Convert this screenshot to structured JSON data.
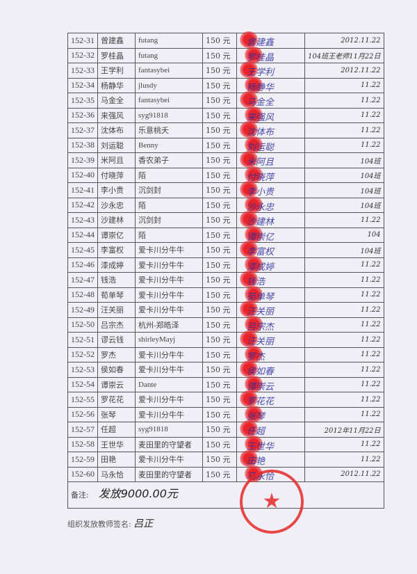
{
  "rows": [
    {
      "id": "152-31",
      "name": "曾建鑫",
      "nickname": "futang",
      "amount": "150 元",
      "signature": "曾建鑫",
      "date": "2012.11.22"
    },
    {
      "id": "152-32",
      "name": "罗桂晶",
      "nickname": "futang",
      "amount": "150 元",
      "signature": "罗桂晶",
      "date": "104班王老师11月22日"
    },
    {
      "id": "152-33",
      "name": "王学利",
      "nickname": "fantasybei",
      "amount": "150 元",
      "signature": "王学利",
      "date": "2012.11.22"
    },
    {
      "id": "152-34",
      "name": "杨静华",
      "nickname": "jlusdy",
      "amount": "150 元",
      "signature": "杨静华",
      "date": "11.22"
    },
    {
      "id": "152-35",
      "name": "马金全",
      "nickname": "fantasybei",
      "amount": "150 元",
      "signature": "马金全",
      "date": "11.22"
    },
    {
      "id": "152-36",
      "name": "来强风",
      "nickname": "syg91818",
      "amount": "150 元",
      "signature": "来强风",
      "date": "11.22"
    },
    {
      "id": "152-37",
      "name": "沈体布",
      "nickname": "乐意桃夭",
      "amount": "150 元",
      "signature": "沈体布",
      "date": "11.22"
    },
    {
      "id": "152-38",
      "name": "刘运聪",
      "nickname": "Benny",
      "amount": "150 元",
      "signature": "刘运聪",
      "date": "11.22"
    },
    {
      "id": "152-39",
      "name": "米阿且",
      "nickname": "香农弟子",
      "amount": "150 元",
      "signature": "米阿且",
      "date": "104班"
    },
    {
      "id": "152-40",
      "name": "付晓萍",
      "nickname": "陌",
      "amount": "150 元",
      "signature": "付晓萍",
      "date": "104班"
    },
    {
      "id": "152-41",
      "name": "李小贵",
      "nickname": "沉剑封",
      "amount": "150 元",
      "signature": "李小贵",
      "date": "104班"
    },
    {
      "id": "152-42",
      "name": "沙永忠",
      "nickname": "陌",
      "amount": "150 元",
      "signature": "沙永忠",
      "date": "104班"
    },
    {
      "id": "152-43",
      "name": "沙建林",
      "nickname": "沉剑封",
      "amount": "150 元",
      "signature": "沙建林",
      "date": "11.22"
    },
    {
      "id": "152-44",
      "name": "谭崇亿",
      "nickname": "陌",
      "amount": "150 元",
      "signature": "谭崇亿",
      "date": "104"
    },
    {
      "id": "152-45",
      "name": "李富权",
      "nickname": "爱卡川分牛牛",
      "amount": "150 元",
      "signature": "李富权",
      "date": "104班"
    },
    {
      "id": "152-46",
      "name": "漆成婷",
      "nickname": "爱卡川分牛牛",
      "amount": "150 元",
      "signature": "漆成婷",
      "date": "11.22"
    },
    {
      "id": "152-47",
      "name": "钱浩",
      "nickname": "爱卡川分牛牛",
      "amount": "150 元",
      "signature": "钱浩",
      "date": "11.22"
    },
    {
      "id": "152-48",
      "name": "荀单琴",
      "nickname": "爱卡川分牛牛",
      "amount": "150 元",
      "signature": "荀单琴",
      "date": "11.22"
    },
    {
      "id": "152-49",
      "name": "汪关丽",
      "nickname": "爱卡川分牛牛",
      "amount": "150 元",
      "signature": "汪关丽",
      "date": "11.22"
    },
    {
      "id": "152-50",
      "name": "吕宗杰",
      "nickname": "杭州-郑皓泽",
      "amount": "150 元",
      "signature": "吕宗杰",
      "date": "11.22"
    },
    {
      "id": "152-51",
      "name": "谬云钱",
      "nickname": "shirleyMayj",
      "amount": "150 元",
      "signature": "汪关丽",
      "date": "11.22"
    },
    {
      "id": "152-52",
      "name": "罗杰",
      "nickname": "爱卡川分牛牛",
      "amount": "150 元",
      "signature": "罗杰",
      "date": "11.22"
    },
    {
      "id": "152-53",
      "name": "侯如春",
      "nickname": "爱卡川分牛牛",
      "amount": "150 元",
      "signature": "侯如春",
      "date": "11.22"
    },
    {
      "id": "152-54",
      "name": "谭崇云",
      "nickname": "Dante",
      "amount": "150 元",
      "signature": "谭崇云",
      "date": "11.22"
    },
    {
      "id": "152-55",
      "name": "罗花花",
      "nickname": "爱卡川分牛牛",
      "amount": "150 元",
      "signature": "罗花花",
      "date": "11.22"
    },
    {
      "id": "152-56",
      "name": "张琴",
      "nickname": "爱卡川分牛牛",
      "amount": "150 元",
      "signature": "张琴",
      "date": "11.22"
    },
    {
      "id": "152-57",
      "name": "任超",
      "nickname": "syg91818",
      "amount": "150 元",
      "signature": "任超",
      "date": "2012年11月22日"
    },
    {
      "id": "152-58",
      "name": "王世华",
      "nickname": "麦田里的守望者",
      "amount": "150 元",
      "signature": "王世华",
      "date": "11.22"
    },
    {
      "id": "152-59",
      "name": "田艳",
      "nickname": "爱卡川分牛牛",
      "amount": "150 元",
      "signature": "田艳",
      "date": "11.22"
    },
    {
      "id": "152-60",
      "name": "马永恰",
      "nickname": "麦田里的守望者",
      "amount": "150 元",
      "signature": "马永恰",
      "date": "2012.11.22"
    }
  ],
  "remark": {
    "label": "备注:",
    "handwritten": "发放9000.00元"
  },
  "teacher_sign": {
    "label": "组织发放教师签名:",
    "handwritten": "吕正"
  },
  "colors": {
    "seal": "#e62828",
    "ink_blue": "#2b2fa0"
  }
}
